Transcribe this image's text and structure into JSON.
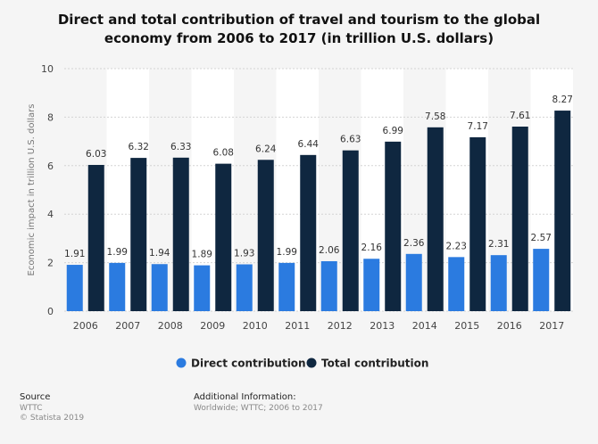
{
  "colors": {
    "direct": "#2b7be0",
    "total": "#0f2740",
    "band": "#ffffff",
    "grid": "#d4d4d4"
  },
  "chart_data": {
    "type": "bar",
    "title": "Direct and total contribution of travel and tourism to the global economy from 2006 to 2017 (in trillion U.S. dollars)",
    "xlabel": "",
    "ylabel": "Economic impact in trillion U.S. dollars",
    "ylim": [
      0,
      10
    ],
    "yticks": [
      0,
      2,
      4,
      6,
      8,
      10
    ],
    "grid": true,
    "legend_position": "bottom",
    "categories": [
      "2006",
      "2007",
      "2008",
      "2009",
      "2010",
      "2011",
      "2012",
      "2013",
      "2014",
      "2015",
      "2016",
      "2017"
    ],
    "series": [
      {
        "name": "Direct contribution",
        "values": [
          1.91,
          1.99,
          1.94,
          1.89,
          1.93,
          1.99,
          2.06,
          2.16,
          2.36,
          2.23,
          2.31,
          2.57
        ]
      },
      {
        "name": "Total contribution",
        "values": [
          6.03,
          6.32,
          6.33,
          6.08,
          6.24,
          6.44,
          6.63,
          6.99,
          7.58,
          7.17,
          7.61,
          8.27
        ]
      }
    ]
  },
  "footer": {
    "source_heading": "Source",
    "source_line1": "WTTC",
    "source_line2": "© Statista 2019",
    "info_heading": "Additional Information:",
    "info_text": "Worldwide; WTTC; 2006 to 2017"
  }
}
